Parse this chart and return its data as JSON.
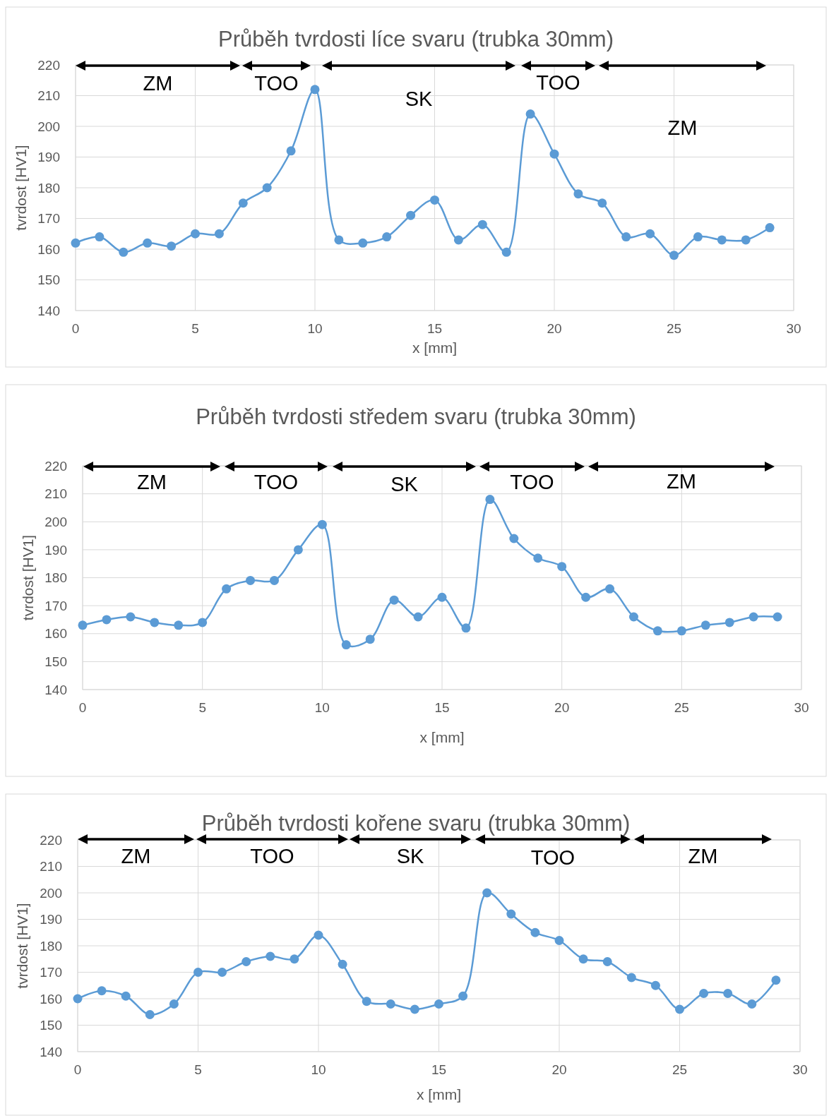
{
  "chart_data": [
    {
      "type": "line",
      "title": "Průběh tvrdosti líce svaru (trubka 30mm)",
      "xlabel": "x [mm]",
      "ylabel": "tvrdost [HV1]",
      "x": [
        0,
        1,
        2,
        3,
        4,
        5,
        6,
        7,
        8,
        9,
        10,
        11,
        12,
        13,
        14,
        15,
        16,
        17,
        18,
        19,
        20,
        21,
        22,
        23,
        24,
        25,
        26,
        27,
        28,
        29
      ],
      "series": [
        {
          "color": "#5b9bd5",
          "values": [
            162,
            164,
            159,
            162,
            161,
            165,
            165,
            175,
            180,
            192,
            212,
            163,
            162,
            164,
            171,
            176,
            163,
            168,
            159,
            204,
            191,
            178,
            175,
            164,
            165,
            158,
            164,
            163,
            163,
            167
          ]
        }
      ],
      "xlim": [
        0,
        30
      ],
      "xticks": [
        0,
        5,
        10,
        15,
        20,
        25,
        30
      ],
      "ylim": [
        140,
        220
      ],
      "yticks": [
        140,
        150,
        160,
        170,
        180,
        190,
        200,
        210,
        220
      ],
      "grid": true,
      "marker": "circle",
      "line_style": "solid",
      "annotations": [
        "ZM",
        "TOO",
        "SK",
        "TOO",
        "ZM"
      ]
    },
    {
      "type": "line",
      "title": "Průběh tvrdosti středem svaru (trubka 30mm)",
      "xlabel": "x [mm]",
      "ylabel": "tvrdost [HV1]",
      "x": [
        0,
        1,
        2,
        3,
        4,
        5,
        6,
        7,
        8,
        9,
        10,
        11,
        12,
        13,
        14,
        15,
        16,
        17,
        18,
        19,
        20,
        21,
        22,
        23,
        24,
        25,
        26,
        27,
        28,
        29
      ],
      "series": [
        {
          "color": "#5b9bd5",
          "values": [
            163,
            165,
            166,
            164,
            163,
            164,
            176,
            179,
            179,
            190,
            199,
            156,
            158,
            172,
            166,
            173,
            162,
            208,
            194,
            187,
            184,
            173,
            176,
            166,
            161,
            161,
            163,
            164,
            166,
            166
          ]
        }
      ],
      "xlim": [
        0,
        30
      ],
      "xticks": [
        0,
        5,
        10,
        15,
        20,
        25,
        30
      ],
      "ylim": [
        140,
        220
      ],
      "yticks": [
        140,
        150,
        160,
        170,
        180,
        190,
        200,
        210,
        220
      ],
      "grid": true,
      "marker": "circle",
      "line_style": "solid",
      "annotations": [
        "ZM",
        "TOO",
        "SK",
        "TOO",
        "ZM"
      ]
    },
    {
      "type": "line",
      "title": "Průběh tvrdosti kořene svaru (trubka 30mm)",
      "xlabel": "x [mm]",
      "ylabel": "tvrdost [HV1]",
      "x": [
        0,
        1,
        2,
        3,
        4,
        5,
        6,
        7,
        8,
        9,
        10,
        11,
        12,
        13,
        14,
        15,
        16,
        17,
        18,
        19,
        20,
        21,
        22,
        23,
        24,
        25,
        26,
        27,
        28,
        29
      ],
      "series": [
        {
          "color": "#5b9bd5",
          "values": [
            160,
            163,
            161,
            154,
            158,
            170,
            170,
            174,
            176,
            175,
            184,
            173,
            159,
            158,
            156,
            158,
            161,
            200,
            192,
            185,
            182,
            175,
            174,
            168,
            165,
            156,
            162,
            162,
            158,
            167
          ]
        }
      ],
      "xlim": [
        0,
        30
      ],
      "xticks": [
        0,
        5,
        10,
        15,
        20,
        25,
        30
      ],
      "ylim": [
        140,
        220
      ],
      "yticks": [
        140,
        150,
        160,
        170,
        180,
        190,
        200,
        210,
        220
      ],
      "grid": true,
      "marker": "circle",
      "line_style": "solid",
      "annotations": [
        "ZM",
        "TOO",
        "SK",
        "TOO",
        "ZM"
      ]
    }
  ]
}
